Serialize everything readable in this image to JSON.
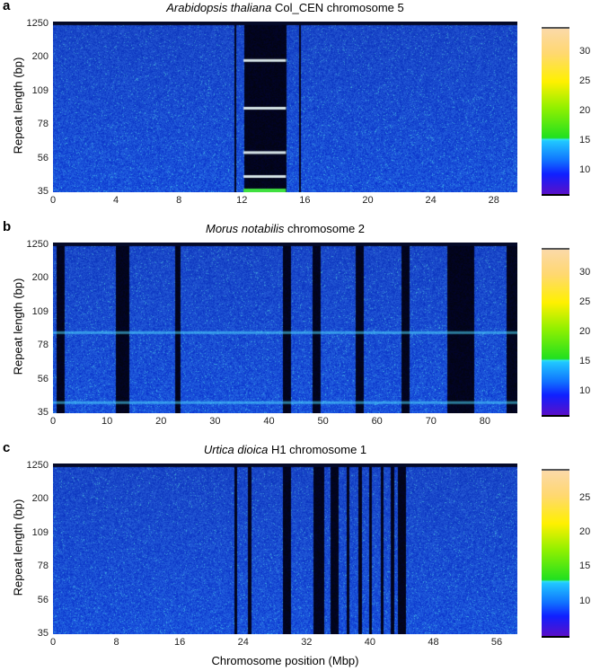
{
  "x_axis_label": "Chromosome position (Mbp)",
  "chart_data": [
    {
      "type": "heatmap",
      "panel_label": "a",
      "title_italic": "Arabidopsis thaliana",
      "title_rest": " Col_CEN chromosome 5",
      "ylabel": "Repeat length (bp)",
      "yticks": [
        "35",
        "56",
        "78",
        "109",
        "200",
        "1250"
      ],
      "xticks": [
        0,
        4,
        8,
        12,
        16,
        20,
        24,
        28
      ],
      "xlim": [
        0,
        29.5
      ],
      "colorbar": {
        "ticks": [
          10,
          15,
          20,
          25,
          30
        ],
        "range": [
          6,
          34
        ]
      },
      "dark_regions_mbp": [
        [
          11.5,
          11.6
        ],
        [
          12.1,
          14.8
        ],
        [
          15.6,
          15.7
        ]
      ],
      "bright_bands": [
        {
          "x": [
            12.1,
            14.8
          ],
          "repeat_levels": [
            0.22,
            0.5,
            0.76,
            0.9
          ]
        }
      ]
    },
    {
      "type": "heatmap",
      "panel_label": "b",
      "title_italic": "Morus notabilis",
      "title_rest": " chromosome 2",
      "ylabel": "Repeat length (bp)",
      "yticks": [
        "35",
        "56",
        "78",
        "109",
        "200",
        "1250"
      ],
      "xticks": [
        0,
        10,
        20,
        30,
        40,
        50,
        60,
        70,
        80
      ],
      "xlim": [
        0,
        86
      ],
      "colorbar": {
        "ticks": [
          10,
          15,
          20,
          25,
          30
        ],
        "range": [
          6,
          34
        ]
      },
      "dark_regions_mbp": [
        [
          0.5,
          2
        ],
        [
          11.5,
          14
        ],
        [
          22.5,
          23.5
        ],
        [
          42.5,
          44
        ],
        [
          48,
          49.5
        ],
        [
          56,
          57.5
        ],
        [
          64.5,
          66
        ],
        [
          73,
          78
        ],
        [
          84,
          86
        ]
      ],
      "bright_bands": [
        {
          "x": [
            0,
            86
          ],
          "repeat_levels": [
            0.52,
            0.93
          ]
        }
      ]
    },
    {
      "type": "heatmap",
      "panel_label": "c",
      "title_italic": "Urtica dioica",
      "title_rest": " H1 chromosome 1",
      "ylabel": "Repeat length (bp)",
      "yticks": [
        "35",
        "56",
        "78",
        "109",
        "200",
        "1250"
      ],
      "xticks": [
        0,
        8,
        16,
        24,
        32,
        40,
        48,
        56
      ],
      "xlim": [
        0,
        58.6
      ],
      "xlabel": "Chromosome position (Mbp)",
      "colorbar": {
        "ticks": [
          10,
          15,
          20,
          25
        ],
        "range": [
          5,
          29
        ]
      },
      "dark_regions_mbp": [
        [
          22.8,
          23.2
        ],
        [
          24.5,
          25
        ],
        [
          29,
          30
        ],
        [
          32.8,
          34.2
        ],
        [
          35,
          36
        ],
        [
          37,
          37.4
        ],
        [
          38.5,
          38.9
        ],
        [
          39.8,
          40.2
        ],
        [
          41.3,
          41.7
        ],
        [
          42.6,
          43
        ],
        [
          43.5,
          44.5
        ]
      ],
      "bright_bands": []
    }
  ]
}
